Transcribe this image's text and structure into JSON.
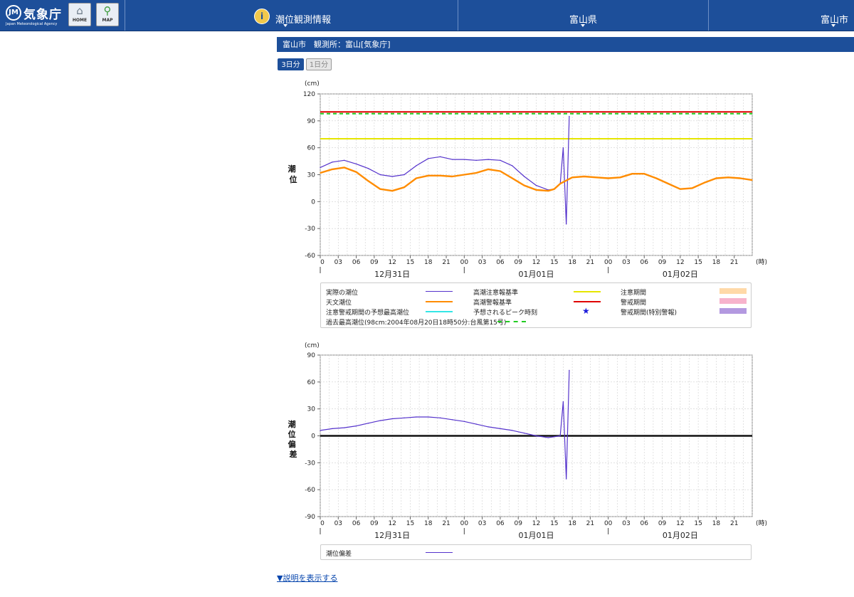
{
  "header": {
    "agency_name": "気象庁",
    "agency_name_en": "Japan Meteorological Agency",
    "home_label": "HOME",
    "map_label": "MAP",
    "menu_title": "潮位観測情報",
    "prefecture": "富山県",
    "city": "富山市"
  },
  "station_bar": {
    "text": "富山市　観測所：富山[気象庁]"
  },
  "tabs": {
    "three_day": "3日分",
    "one_day": "1日分"
  },
  "colors": {
    "header_bg": "#1d4f9a",
    "observed": "#5533cc",
    "astronomical": "#ff8c00",
    "caution_level": "#e6e600",
    "warning_level": "#e00000",
    "record_high": "#22cc22",
    "predicted_peak": "#33e6e6",
    "caution_period": "#ffd9a8",
    "warning_period": "#f7b3cc",
    "special_warning_period": "#b399e0"
  },
  "chart_top": {
    "unit": "(cm)",
    "ylabel": "潮位",
    "y_ticks": [
      "120",
      "90",
      "60",
      "30",
      "0",
      "-30",
      "-60"
    ],
    "hour_ticks": [
      "0",
      "03",
      "06",
      "09",
      "12",
      "15",
      "18",
      "21",
      "00",
      "03",
      "06",
      "09",
      "12",
      "15",
      "18",
      "21",
      "00",
      "03",
      "06",
      "09",
      "12",
      "15",
      "18",
      "21"
    ],
    "day_labels": [
      "12月31日",
      "01月01日",
      "01月02日"
    ],
    "x_unit": "(時)"
  },
  "chart_bottom": {
    "unit": "(cm)",
    "ylabel": "潮位偏差",
    "y_ticks": [
      "90",
      "60",
      "30",
      "0",
      "-30",
      "-60",
      "-90"
    ],
    "hour_ticks": [
      "0",
      "03",
      "06",
      "09",
      "12",
      "15",
      "18",
      "21",
      "00",
      "03",
      "06",
      "09",
      "12",
      "15",
      "18",
      "21",
      "00",
      "03",
      "06",
      "09",
      "12",
      "15",
      "18",
      "21"
    ],
    "day_labels": [
      "12月31日",
      "01月01日",
      "01月02日"
    ],
    "x_unit": "(時)"
  },
  "legend_top": {
    "observed": "実際の潮位",
    "astronomical": "天文潮位",
    "predicted_max": "注意警戒期間の予想最高潮位",
    "record": "過去最高潮位(98cm:2004年08月20日18時50分:台風第15号)",
    "caution_level": "高潮注意報基準",
    "warning_level": "高潮警報基準",
    "peak_time": "予想されるピーク時刻",
    "caution_period": "注意期間",
    "warning_period": "警戒期間",
    "special_period": "警戒期間(特別警報)"
  },
  "legend_bottom": {
    "deviation": "潮位偏差"
  },
  "explain_link": "▼説明を表示する",
  "chart_data": [
    {
      "type": "line",
      "y_unit": "cm",
      "x_unit": "hours from 12月31日 00時",
      "xlim": [
        0,
        72
      ],
      "ylim": [
        -60,
        120
      ],
      "thresholds": [
        {
          "name": "高潮注意報基準",
          "value": 70
        },
        {
          "name": "高潮警報基準",
          "value": 100
        },
        {
          "name": "過去最高潮位",
          "value": 98
        }
      ],
      "series": [
        {
          "name": "実際の潮位",
          "x": [
            0,
            2,
            4,
            6,
            8,
            10,
            12,
            14,
            16,
            18,
            20,
            22,
            24,
            26,
            28,
            30,
            32,
            34,
            36,
            38,
            39,
            40,
            40.5,
            41,
            41.5
          ],
          "y": [
            38,
            44,
            46,
            42,
            37,
            30,
            28,
            30,
            40,
            48,
            50,
            47,
            47,
            46,
            47,
            46,
            40,
            28,
            18,
            13,
            14,
            20,
            60,
            -25,
            95
          ]
        },
        {
          "name": "天文潮位",
          "x": [
            0,
            2,
            4,
            6,
            8,
            10,
            12,
            14,
            16,
            18,
            20,
            22,
            24,
            26,
            28,
            30,
            32,
            34,
            36,
            38,
            39,
            40,
            42,
            44,
            46,
            48,
            50,
            52,
            54,
            56,
            58,
            60,
            62,
            64,
            66,
            68,
            70,
            72
          ],
          "y": [
            32,
            36,
            38,
            33,
            23,
            14,
            12,
            16,
            26,
            29,
            29,
            28,
            30,
            32,
            36,
            34,
            26,
            18,
            13,
            12,
            14,
            20,
            27,
            28,
            27,
            26,
            27,
            31,
            31,
            26,
            20,
            14,
            15,
            21,
            26,
            27,
            26,
            24
          ]
        }
      ]
    },
    {
      "type": "line",
      "y_unit": "cm",
      "x_unit": "hours from 12月31日 00時",
      "xlim": [
        0,
        72
      ],
      "ylim": [
        -90,
        90
      ],
      "series": [
        {
          "name": "潮位偏差",
          "x": [
            0,
            2,
            4,
            6,
            8,
            10,
            12,
            14,
            16,
            18,
            20,
            22,
            24,
            26,
            28,
            30,
            32,
            34,
            36,
            38,
            39,
            40,
            40.5,
            41,
            41.5
          ],
          "y": [
            6,
            8,
            9,
            11,
            14,
            17,
            19,
            20,
            21,
            21,
            20,
            18,
            16,
            13,
            10,
            8,
            6,
            3,
            0,
            -2,
            -1,
            0,
            38,
            -48,
            73
          ]
        }
      ]
    }
  ]
}
